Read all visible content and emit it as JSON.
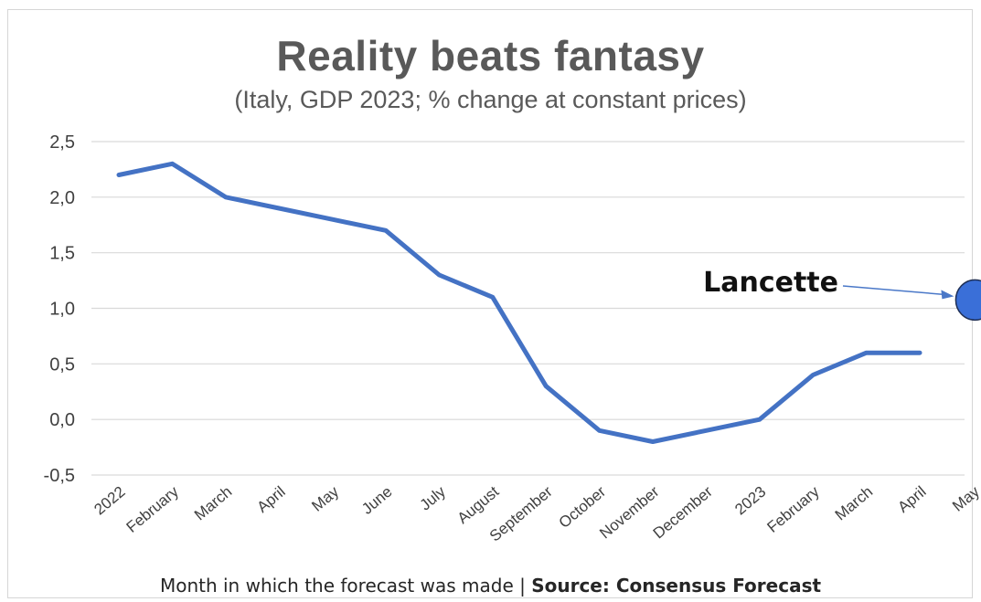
{
  "chart_data": {
    "type": "line",
    "title": "Reality beats fantasy",
    "subtitle": "(Italy, GDP 2023; % change at constant prices)",
    "categories": [
      "2022",
      "February",
      "March",
      "April",
      "May",
      "June",
      "July",
      "August",
      "September",
      "October",
      "November",
      "December",
      "2023",
      "February",
      "March",
      "April",
      "May"
    ],
    "series": [
      {
        "color": "#4472C4",
        "values": [
          2.2,
          2.3,
          2.0,
          1.9,
          1.8,
          1.7,
          1.3,
          1.1,
          0.3,
          -0.1,
          -0.2,
          -0.1,
          0.0,
          0.4,
          0.6,
          0.6,
          null
        ]
      }
    ],
    "y_ticks": [
      "2,5",
      "2,0",
      "1,5",
      "1,0",
      "0,5",
      "0,0",
      "-0,5"
    ],
    "y_tick_values": [
      2.5,
      2.0,
      1.5,
      1.0,
      0.5,
      0.0,
      -0.5
    ],
    "ylim": [
      -0.5,
      2.5
    ],
    "grid": true,
    "annotation": {
      "label": "Lancette",
      "category": "May",
      "value": 1.1,
      "color": "#3A6FD8"
    },
    "footer_text": "Month in which the forecast was made | ",
    "footer_source": "Source: Consensus Forecast"
  }
}
